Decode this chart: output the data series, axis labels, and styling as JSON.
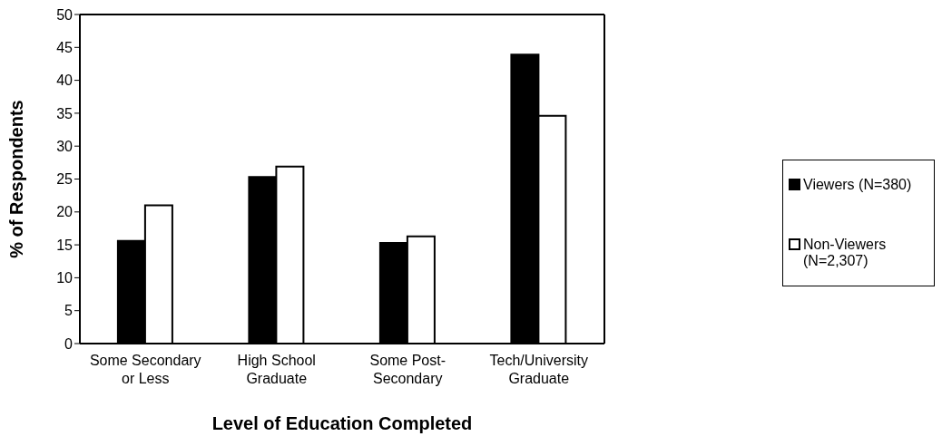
{
  "chart_data": {
    "type": "bar",
    "xlabel": "Level of Education Completed",
    "ylabel": "% of Respondents",
    "categories": [
      "Some Secondary or Less",
      "High School Graduate",
      "Some Post-Secondary",
      "Tech/University Graduate"
    ],
    "series": [
      {
        "name": "Viewers (N=380)",
        "color": "#000000",
        "values": [
          15.6,
          25.3,
          15.3,
          43.9
        ]
      },
      {
        "name": "Non-Viewers (N=2,307)",
        "color": "#ffffff",
        "values": [
          21.0,
          26.9,
          16.3,
          34.6
        ]
      }
    ],
    "ylim": [
      0,
      50
    ],
    "yticks": [
      0,
      5,
      10,
      15,
      20,
      25,
      30,
      35,
      40,
      45,
      50
    ],
    "legend": "right"
  }
}
